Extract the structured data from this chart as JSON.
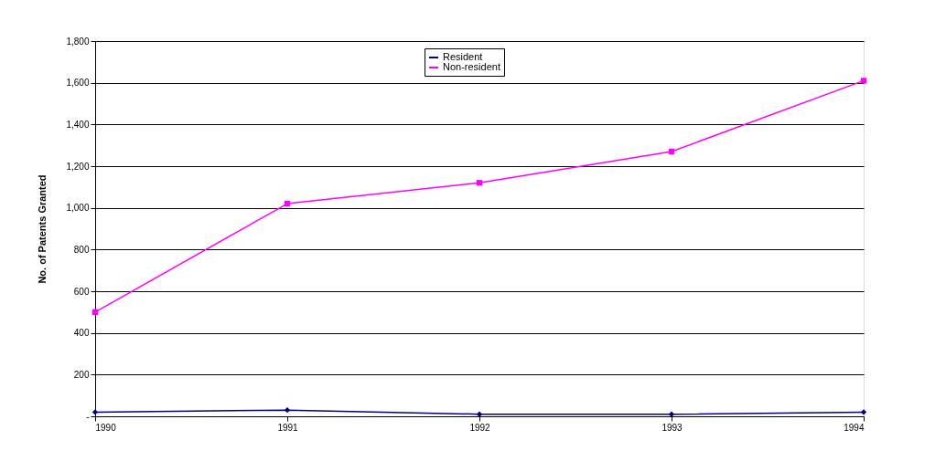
{
  "chart_data": {
    "type": "line",
    "ylabel": "No. of Patents Granted",
    "categories": [
      "1990",
      "1991",
      "1992",
      "1993",
      "1994"
    ],
    "series": [
      {
        "name": "Resident",
        "color": "#000080",
        "marker": "diamond",
        "values": [
          20,
          30,
          10,
          10,
          20
        ]
      },
      {
        "name": "Non-resident",
        "color": "#ff00ff",
        "marker": "square",
        "values": [
          500,
          1020,
          1120,
          1270,
          1610
        ]
      }
    ],
    "ylim": [
      0,
      1800
    ],
    "yticks": [
      {
        "value": 0,
        "label": "-"
      },
      {
        "value": 200,
        "label": "200"
      },
      {
        "value": 400,
        "label": "400"
      },
      {
        "value": 600,
        "label": "600"
      },
      {
        "value": 800,
        "label": "800"
      },
      {
        "value": 1000,
        "label": "1,000"
      },
      {
        "value": 1200,
        "label": "1,200"
      },
      {
        "value": 1400,
        "label": "1,400"
      },
      {
        "value": 1600,
        "label": "1,600"
      },
      {
        "value": 1800,
        "label": "1,800"
      }
    ],
    "grid": "y",
    "legend": "top"
  }
}
